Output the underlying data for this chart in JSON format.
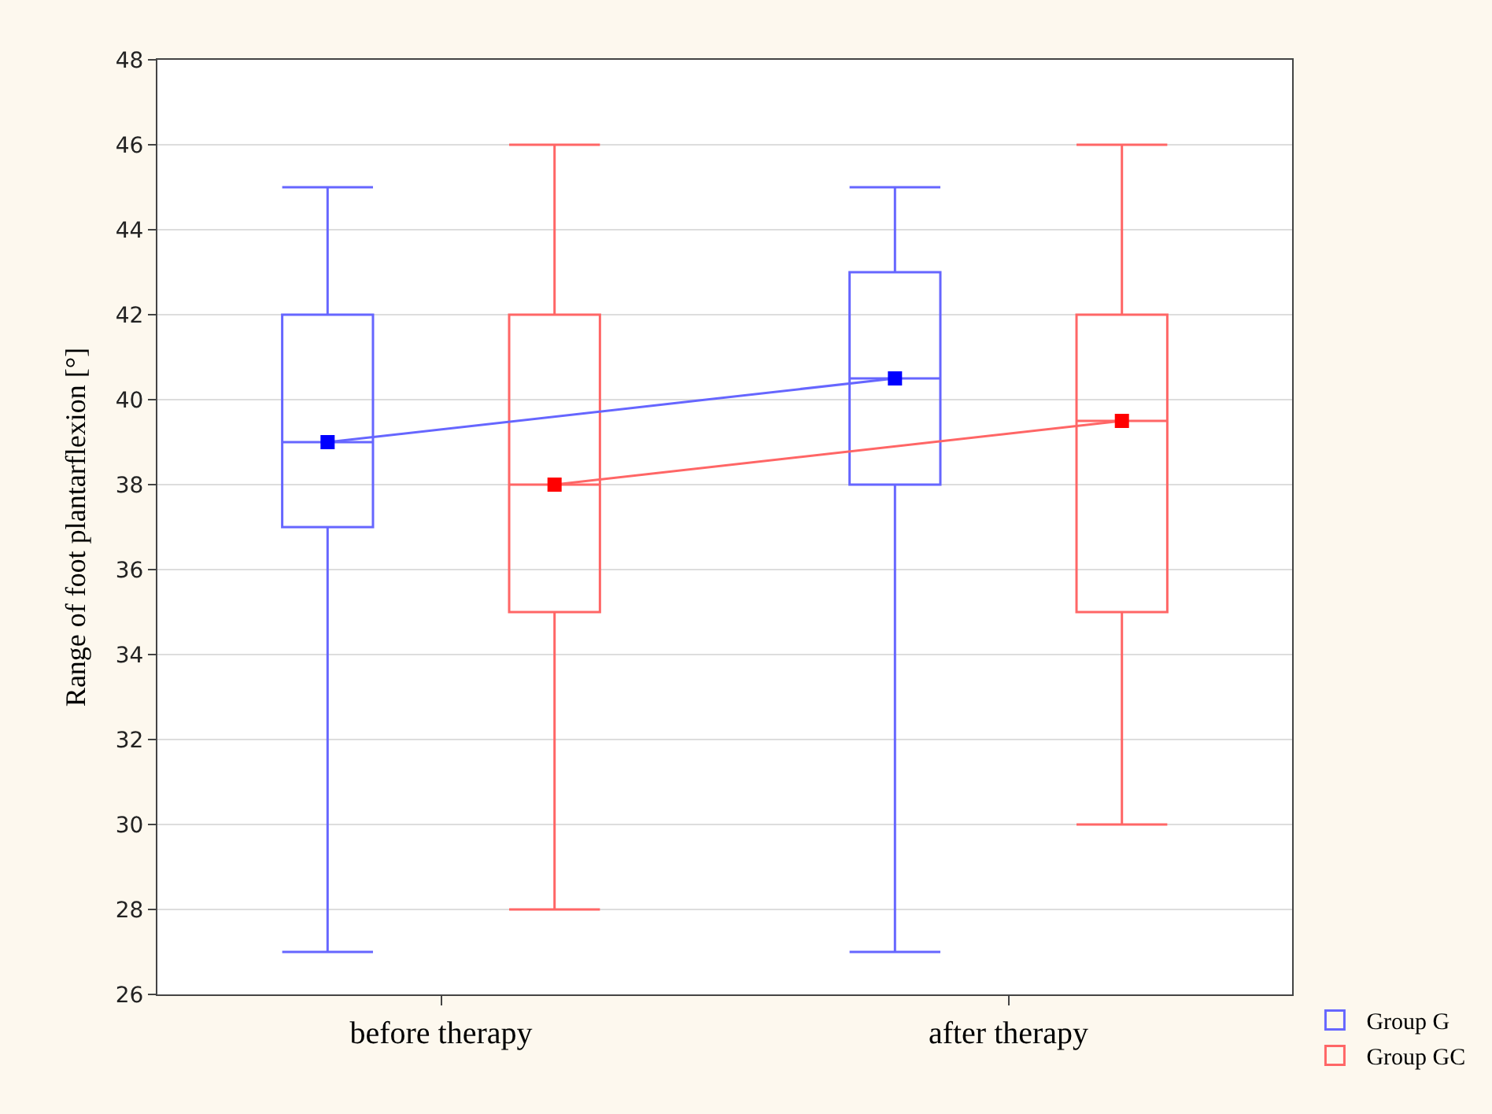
{
  "chart_data": {
    "type": "box",
    "ylabel": "Range of foot plantarflexion [°]",
    "categories": [
      "before therapy",
      "after therapy"
    ],
    "series": [
      {
        "name": "Group G",
        "color": "#6666ff",
        "boxes": [
          {
            "low": 27,
            "q1": 37,
            "median": 39,
            "q3": 42,
            "high": 45
          },
          {
            "low": 27,
            "q1": 38,
            "median": 40.5,
            "q3": 43,
            "high": 45
          }
        ]
      },
      {
        "name": "Group GC",
        "color": "#ff6666",
        "boxes": [
          {
            "low": 28,
            "q1": 35,
            "median": 38,
            "q3": 42,
            "high": 46
          },
          {
            "low": 30,
            "q1": 35,
            "median": 39.5,
            "q3": 42,
            "high": 46
          }
        ]
      },
      {
        "type": "line",
        "color": "#0000ff",
        "values": [
          39,
          40.5
        ]
      },
      {
        "type": "line",
        "color": "#ff0000",
        "values": [
          38,
          39.5
        ]
      }
    ],
    "ylim": [
      26,
      48
    ],
    "yticks": [
      26,
      28,
      30,
      32,
      34,
      36,
      38,
      40,
      42,
      44,
      46,
      48
    ],
    "grid": "y",
    "legend": "bottom right",
    "marker": "square",
    "line_style": "solid"
  }
}
